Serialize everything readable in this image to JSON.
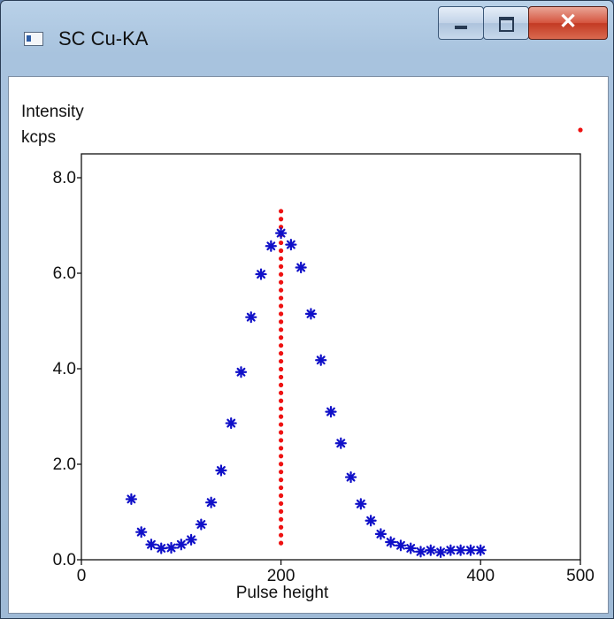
{
  "window": {
    "title": "SC Cu-KA",
    "icon": "app-window-icon",
    "buttons": {
      "minimize": "minimize-icon",
      "maximize": "maximize-icon",
      "close": "close-icon"
    }
  },
  "chart_data": {
    "type": "scatter",
    "y_axis_title": "Intensity",
    "y_unit": "kcps",
    "xlabel": "Pulse height",
    "xlim": [
      0,
      500
    ],
    "ylim": [
      0,
      8.5
    ],
    "x_ticks": [
      "0",
      "200",
      "400",
      "500"
    ],
    "y_ticks": [
      "0.0",
      "2.0",
      "4.0",
      "6.0",
      "8.0"
    ],
    "grid": false,
    "legend": "none",
    "marker_color": "#1010c8",
    "line_color": "#ee1111",
    "series": [
      {
        "marker": "asterisk",
        "points": [
          [
            50,
            1.27
          ],
          [
            60,
            0.58
          ],
          [
            70,
            0.32
          ],
          [
            80,
            0.24
          ],
          [
            90,
            0.25
          ],
          [
            100,
            0.32
          ],
          [
            110,
            0.42
          ],
          [
            120,
            0.74
          ],
          [
            130,
            1.2
          ],
          [
            140,
            1.87
          ],
          [
            150,
            2.86
          ],
          [
            160,
            3.93
          ],
          [
            170,
            5.08
          ],
          [
            180,
            5.98
          ],
          [
            190,
            6.57
          ],
          [
            200,
            6.84
          ],
          [
            210,
            6.6
          ],
          [
            220,
            6.12
          ],
          [
            230,
            5.15
          ],
          [
            240,
            4.18
          ],
          [
            250,
            3.1
          ],
          [
            260,
            2.44
          ],
          [
            270,
            1.73
          ],
          [
            280,
            1.17
          ],
          [
            290,
            0.82
          ],
          [
            300,
            0.54
          ],
          [
            310,
            0.37
          ],
          [
            320,
            0.3
          ],
          [
            330,
            0.24
          ],
          [
            340,
            0.17
          ],
          [
            350,
            0.2
          ],
          [
            360,
            0.16
          ],
          [
            370,
            0.2
          ],
          [
            380,
            0.2
          ],
          [
            390,
            0.2
          ],
          [
            400,
            0.2
          ]
        ]
      }
    ],
    "vertical_marker": {
      "style": "dotted",
      "x": 200,
      "y_from": 0.35,
      "y_to": 7.3
    },
    "extra_point": {
      "x": 500,
      "y": 9.0
    }
  }
}
